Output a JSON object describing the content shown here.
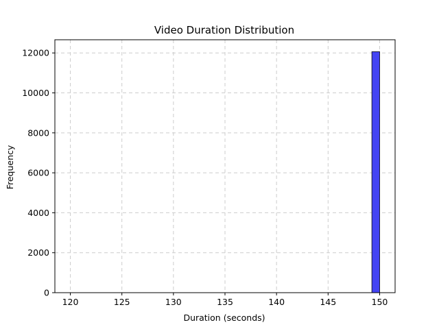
{
  "chart_data": {
    "type": "bar",
    "title": "Video Duration Distribution",
    "xlabel": "Duration (seconds)",
    "ylabel": "Frequency",
    "xlim": [
      118.5,
      151.5
    ],
    "ylim": [
      0,
      12660
    ],
    "x_ticks": [
      120,
      125,
      130,
      135,
      140,
      145,
      150
    ],
    "y_ticks": [
      0,
      2000,
      4000,
      6000,
      8000,
      10000,
      12000
    ],
    "grid": true,
    "bins": [
      {
        "x_start": 149.25,
        "x_end": 150.0,
        "count": 12060
      }
    ],
    "colors": {
      "bar_fill": "#4444f4",
      "bar_edge": "#1a1a3a",
      "grid": "#cccccc"
    }
  }
}
